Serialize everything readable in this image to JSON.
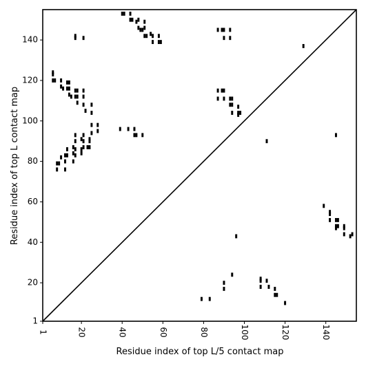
{
  "chart_data": {
    "type": "scatter",
    "title": "",
    "xlabel": "Residue index of top L/5 contact map",
    "ylabel": "Residue index of top L contact map",
    "xlim": [
      1,
      155
    ],
    "ylim": [
      1,
      155
    ],
    "xticks": [
      1,
      20,
      40,
      60,
      80,
      100,
      120,
      140
    ],
    "yticks": [
      1,
      20,
      40,
      60,
      80,
      100,
      120,
      140
    ],
    "diagonal": true,
    "grid": false,
    "legend": "none",
    "colors": {
      "marker": "#000000",
      "axis": "#000000",
      "background": "#ffffff"
    },
    "series": [
      {
        "values": [
          [
            40,
            153
          ],
          [
            41,
            153
          ],
          [
            44,
            153
          ],
          [
            44,
            150
          ],
          [
            45,
            150
          ],
          [
            47,
            149
          ],
          [
            48,
            150
          ],
          [
            48,
            146
          ],
          [
            49,
            145
          ],
          [
            50,
            145
          ],
          [
            51,
            146
          ],
          [
            51,
            149
          ],
          [
            51,
            142
          ],
          [
            52,
            142
          ],
          [
            54,
            143
          ],
          [
            55,
            142
          ],
          [
            55,
            139
          ],
          [
            58,
            142
          ],
          [
            58,
            139
          ],
          [
            59,
            139
          ],
          [
            17,
            142
          ],
          [
            17,
            141
          ],
          [
            21,
            141
          ],
          [
            6,
            124
          ],
          [
            6,
            123
          ],
          [
            6,
            120
          ],
          [
            7,
            120
          ],
          [
            10,
            120
          ],
          [
            10,
            117
          ],
          [
            11,
            116
          ],
          [
            13,
            119
          ],
          [
            14,
            119
          ],
          [
            13,
            116
          ],
          [
            14,
            116
          ],
          [
            14,
            113
          ],
          [
            15,
            112
          ],
          [
            17,
            115
          ],
          [
            18,
            115
          ],
          [
            17,
            112
          ],
          [
            18,
            112
          ],
          [
            21,
            115
          ],
          [
            21,
            112
          ],
          [
            18,
            109
          ],
          [
            21,
            108
          ],
          [
            22,
            105
          ],
          [
            25,
            108
          ],
          [
            25,
            104
          ],
          [
            17,
            93
          ],
          [
            17,
            90
          ],
          [
            20,
            91
          ],
          [
            21,
            90
          ],
          [
            21,
            93
          ],
          [
            25,
            94
          ],
          [
            28,
            98
          ],
          [
            28,
            95
          ],
          [
            25,
            98
          ],
          [
            24,
            90
          ],
          [
            21,
            87
          ],
          [
            20,
            86
          ],
          [
            23,
            87
          ],
          [
            24,
            87
          ],
          [
            24,
            91
          ],
          [
            16,
            87
          ],
          [
            17,
            86
          ],
          [
            16,
            84
          ],
          [
            17,
            83
          ],
          [
            20,
            84
          ],
          [
            13,
            86
          ],
          [
            13,
            83
          ],
          [
            12,
            83
          ],
          [
            10,
            82
          ],
          [
            9,
            79
          ],
          [
            8,
            79
          ],
          [
            12,
            80
          ],
          [
            16,
            80
          ],
          [
            8,
            76
          ],
          [
            12,
            76
          ],
          [
            39,
            96
          ],
          [
            43,
            96
          ],
          [
            46,
            96
          ],
          [
            46,
            93
          ],
          [
            47,
            93
          ],
          [
            50,
            93
          ],
          [
            87,
            145
          ],
          [
            89,
            145
          ],
          [
            90,
            145
          ],
          [
            93,
            145
          ],
          [
            90,
            141
          ],
          [
            93,
            141
          ],
          [
            129,
            137
          ],
          [
            87,
            115
          ],
          [
            89,
            115
          ],
          [
            90,
            115
          ],
          [
            87,
            111
          ],
          [
            90,
            111
          ],
          [
            93,
            111
          ],
          [
            94,
            111
          ],
          [
            93,
            108
          ],
          [
            94,
            108
          ],
          [
            94,
            104
          ],
          [
            97,
            107
          ],
          [
            97,
            104
          ],
          [
            98,
            104
          ],
          [
            97,
            103
          ],
          [
            111,
            90
          ],
          [
            145,
            93
          ]
        ]
      },
      {
        "values": [
          [
            139,
            58
          ],
          [
            142,
            55
          ],
          [
            142,
            54
          ],
          [
            142,
            51
          ],
          [
            145,
            51
          ],
          [
            146,
            51
          ],
          [
            145,
            48
          ],
          [
            146,
            48
          ],
          [
            145,
            47
          ],
          [
            149,
            48
          ],
          [
            149,
            47
          ],
          [
            149,
            44
          ],
          [
            152,
            43
          ],
          [
            153,
            44
          ],
          [
            96,
            43
          ],
          [
            79,
            12
          ],
          [
            83,
            12
          ],
          [
            90,
            20
          ],
          [
            90,
            17
          ],
          [
            94,
            24
          ],
          [
            108,
            22
          ],
          [
            108,
            21
          ],
          [
            108,
            18
          ],
          [
            111,
            21
          ],
          [
            112,
            18
          ],
          [
            115,
            17
          ],
          [
            115,
            14
          ],
          [
            116,
            14
          ],
          [
            120,
            10
          ]
        ]
      }
    ]
  }
}
